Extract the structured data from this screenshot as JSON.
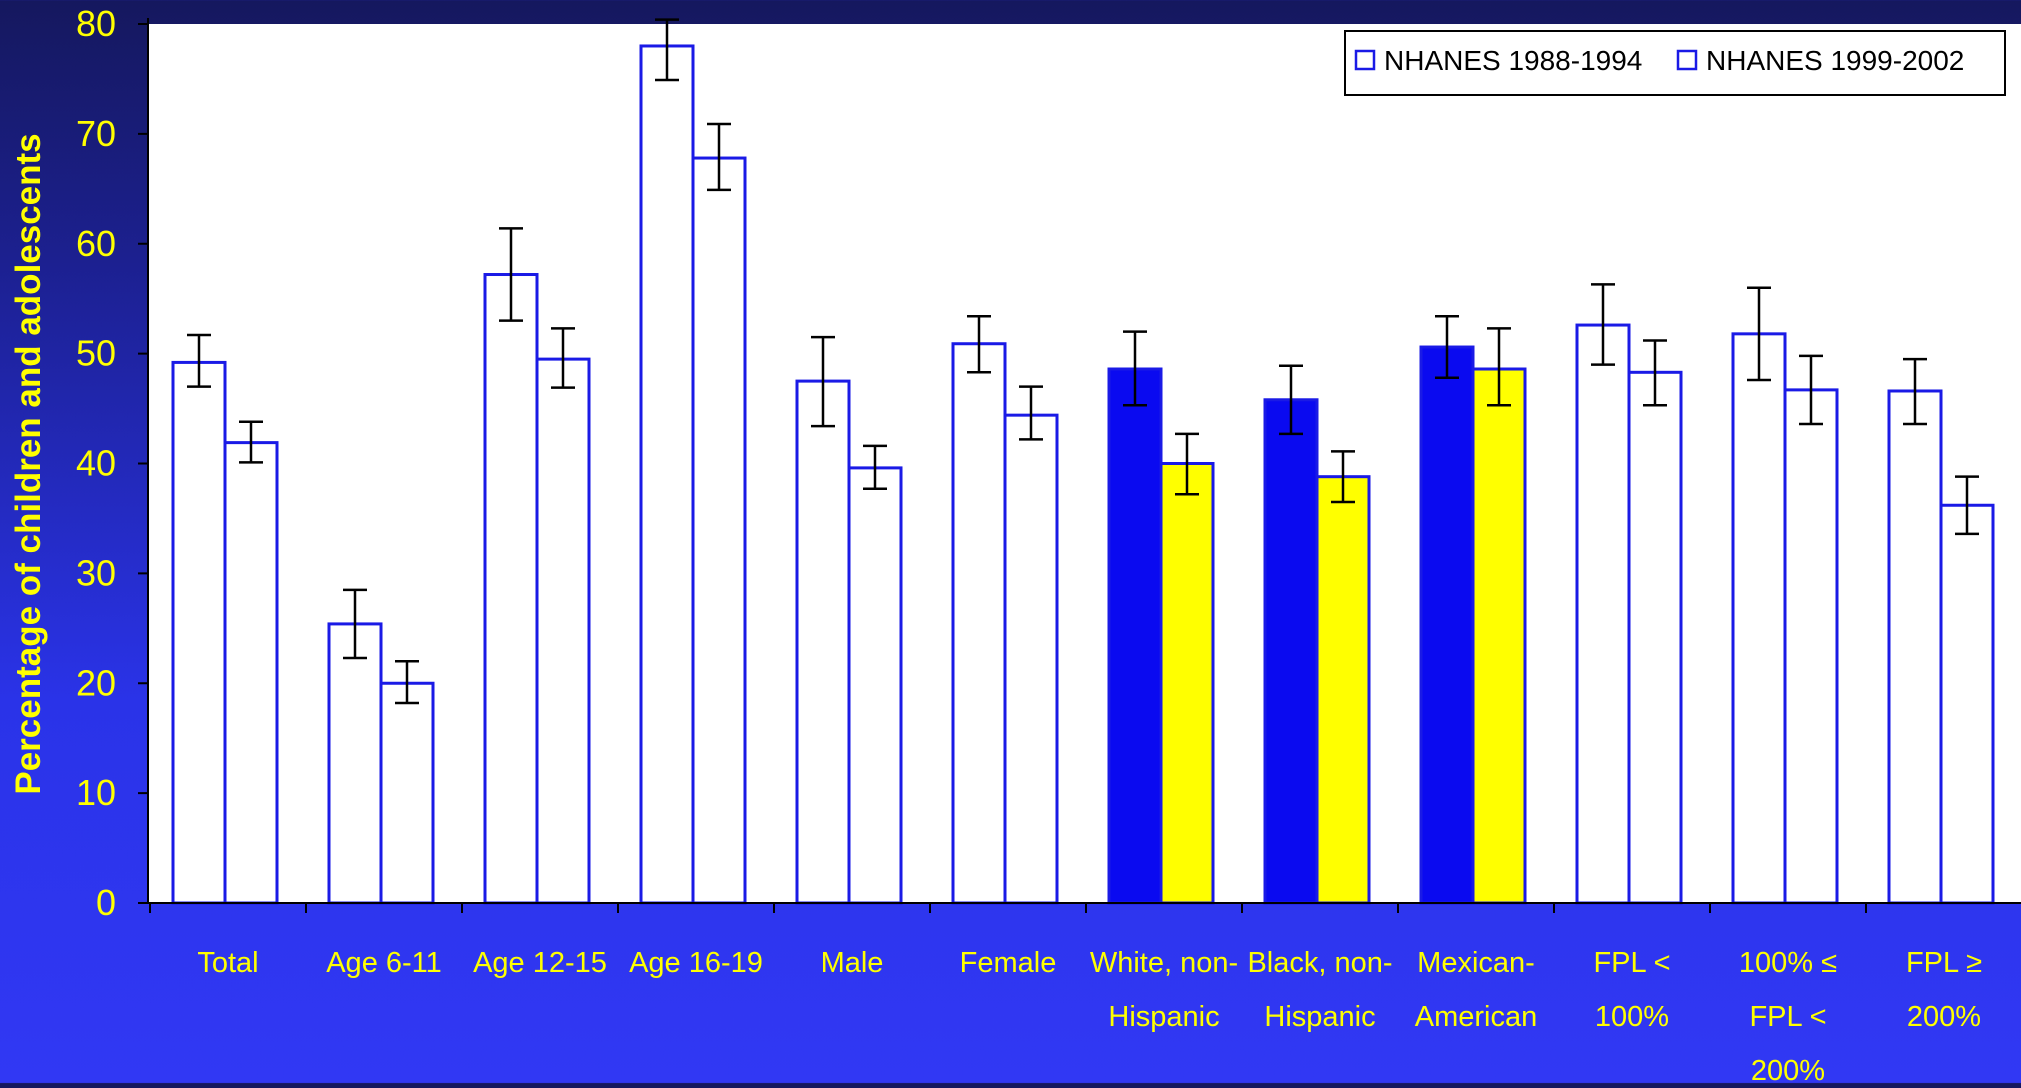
{
  "chart_data": {
    "type": "bar",
    "ylabel": "Percentage of children and adolescents",
    "ylim": [
      0,
      80
    ],
    "yticks": [
      0,
      10,
      20,
      30,
      40,
      50,
      60,
      70,
      80
    ],
    "categories": [
      [
        "Total"
      ],
      [
        "Age 6-11"
      ],
      [
        "Age 12-15"
      ],
      [
        "Age 16-19"
      ],
      [
        "Male"
      ],
      [
        "Female"
      ],
      [
        "White, non-",
        "Hispanic"
      ],
      [
        "Black, non-",
        "Hispanic"
      ],
      [
        "Mexican-",
        "American"
      ],
      [
        "FPL <",
        "100%"
      ],
      [
        "100% ≤",
        "FPL <",
        "200%"
      ],
      [
        "FPL ≥",
        "200%"
      ]
    ],
    "series": [
      {
        "name": "NHANES 1988-1994",
        "values": [
          49.2,
          25.4,
          57.2,
          78.0,
          47.5,
          50.9,
          48.6,
          45.8,
          50.6,
          52.6,
          51.8,
          46.6
        ],
        "err_low": [
          47.0,
          22.3,
          53.0,
          74.9,
          43.4,
          48.3,
          45.3,
          42.7,
          47.8,
          49.0,
          47.6,
          43.6
        ],
        "err_high": [
          51.7,
          28.5,
          61.4,
          80.4,
          51.5,
          53.4,
          52.0,
          48.9,
          53.4,
          56.3,
          56.0,
          49.5
        ]
      },
      {
        "name": "NHANES 1999-2002",
        "values": [
          41.9,
          20.0,
          49.5,
          67.8,
          39.6,
          44.4,
          40.0,
          38.8,
          48.6,
          48.3,
          46.7,
          36.2
        ],
        "err_low": [
          40.1,
          18.2,
          46.9,
          64.9,
          37.7,
          42.2,
          37.2,
          36.5,
          45.3,
          45.3,
          43.6,
          33.6
        ],
        "err_high": [
          43.8,
          22.0,
          52.3,
          70.9,
          41.6,
          47.0,
          42.7,
          41.1,
          52.3,
          51.2,
          49.8,
          38.8
        ]
      }
    ],
    "highlight_categories": [
      6,
      7,
      8
    ],
    "legend_position": "top-right",
    "colors": {
      "bar_outline": "#1a1ae6",
      "bar_fill": "#ffffff",
      "highlight_1988": "#0a0af0",
      "highlight_1999": "#ffff00",
      "plot_background": "#ffffff",
      "axis_text": "#ffff00",
      "error_bar": "#000000"
    }
  }
}
